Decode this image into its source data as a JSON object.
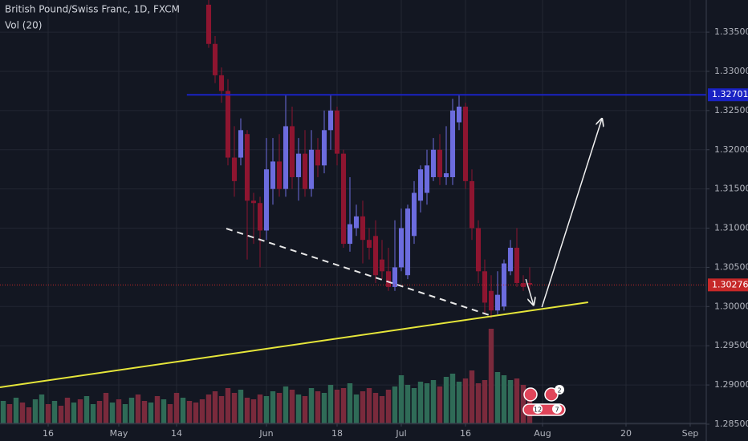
{
  "chart_data": {
    "type": "candlestick",
    "title": "British Pound/Swiss Franc, 1D, FXCM",
    "subtitle": "Vol (20)",
    "xlim": [
      -18.5,
      91.5
    ],
    "ylim": [
      1.2851,
      1.3391
    ],
    "grid": true,
    "yticks": [
      {
        "value": 1.285,
        "label": "1.28500"
      },
      {
        "value": 1.29,
        "label": "1.29000"
      },
      {
        "value": 1.295,
        "label": "1.29500"
      },
      {
        "value": 1.3,
        "label": "1.30000"
      },
      {
        "value": 1.305,
        "label": "1.30500"
      },
      {
        "value": 1.31,
        "label": "1.31000"
      },
      {
        "value": 1.315,
        "label": "1.31500"
      },
      {
        "value": 1.32,
        "label": "1.32000"
      },
      {
        "value": 1.325,
        "label": "1.32500"
      },
      {
        "value": 1.33,
        "label": "1.33000"
      },
      {
        "value": 1.335,
        "label": "1.33500"
      }
    ],
    "xticks": [
      {
        "value": -11,
        "label": "16"
      },
      {
        "value": 0,
        "label": "May"
      },
      {
        "value": 9,
        "label": "14"
      },
      {
        "value": 23,
        "label": "Jun"
      },
      {
        "value": 34,
        "label": "18"
      },
      {
        "value": 44,
        "label": "Jul"
      },
      {
        "value": 54,
        "label": "16"
      },
      {
        "value": 66,
        "label": "Aug"
      },
      {
        "value": 79,
        "label": "20"
      },
      {
        "value": 89,
        "label": "Sep"
      }
    ],
    "up_color": "#6c6cde",
    "down_color": "#8e1530",
    "x": [
      14,
      15,
      16,
      17,
      18,
      19,
      20,
      21,
      22,
      23,
      24,
      25,
      26,
      27,
      28,
      29,
      30,
      31,
      32,
      33,
      34,
      35,
      36,
      37,
      38,
      39,
      40,
      41,
      42,
      43,
      44,
      45,
      46,
      47,
      48,
      49,
      50,
      51,
      52,
      53,
      54,
      55,
      56,
      57,
      58,
      59,
      60,
      61,
      62,
      63,
      64
    ],
    "open": [
      1.3385,
      1.3335,
      1.3295,
      1.3275,
      1.319,
      1.319,
      1.322,
      1.3135,
      1.3132,
      1.3097,
      1.315,
      1.3185,
      1.315,
      1.323,
      1.3165,
      1.3195,
      1.315,
      1.32,
      1.318,
      1.3225,
      1.325,
      1.3195,
      1.308,
      1.31,
      1.3115,
      1.3085,
      1.309,
      1.306,
      1.3045,
      1.3025,
      1.305,
      1.304,
      1.309,
      1.3135,
      1.3145,
      1.3165,
      1.32,
      1.3165,
      1.3165,
      1.3235,
      1.3255,
      1.316,
      1.31,
      1.3045,
      1.302,
      1.2995,
      1.3,
      1.3045,
      1.3075,
      1.303,
      1.303
    ],
    "high": [
      1.3391,
      1.3345,
      1.3305,
      1.329,
      1.323,
      1.324,
      1.3225,
      1.3145,
      1.314,
      1.3215,
      1.3215,
      1.322,
      1.327,
      1.3255,
      1.3215,
      1.3225,
      1.3225,
      1.3215,
      1.325,
      1.327,
      1.3255,
      1.32,
      1.3165,
      1.313,
      1.3135,
      1.31,
      1.311,
      1.3085,
      1.3075,
      1.311,
      1.3125,
      1.313,
      1.316,
      1.318,
      1.32,
      1.3215,
      1.322,
      1.323,
      1.3265,
      1.327,
      1.326,
      1.3175,
      1.311,
      1.306,
      1.304,
      1.3045,
      1.306,
      1.3085,
      1.31,
      1.304,
      1.305
    ],
    "low": [
      1.333,
      1.3285,
      1.326,
      1.318,
      1.314,
      1.318,
      1.306,
      1.308,
      1.305,
      1.3085,
      1.313,
      1.314,
      1.314,
      1.315,
      1.3135,
      1.314,
      1.314,
      1.3165,
      1.317,
      1.32,
      1.318,
      1.3075,
      1.307,
      1.309,
      1.3055,
      1.306,
      1.303,
      1.3035,
      1.302,
      1.302,
      1.3045,
      1.3035,
      1.308,
      1.312,
      1.313,
      1.316,
      1.3155,
      1.3155,
      1.3155,
      1.3225,
      1.315,
      1.3085,
      1.303,
      1.299,
      1.2985,
      1.299,
      1.2995,
      1.304,
      1.3025,
      1.302,
      1.302
    ],
    "close": [
      1.3335,
      1.3295,
      1.3275,
      1.319,
      1.316,
      1.3225,
      1.3135,
      1.3132,
      1.3097,
      1.3175,
      1.3185,
      1.315,
      1.323,
      1.3165,
      1.3195,
      1.315,
      1.32,
      1.318,
      1.3225,
      1.325,
      1.3195,
      1.308,
      1.3105,
      1.3115,
      1.3085,
      1.3075,
      1.304,
      1.3045,
      1.3025,
      1.305,
      1.31,
      1.3125,
      1.3145,
      1.3175,
      1.318,
      1.32,
      1.3165,
      1.317,
      1.325,
      1.3255,
      1.316,
      1.31,
      1.3045,
      1.3005,
      1.2995,
      1.3015,
      1.3055,
      1.3075,
      1.303,
      1.3025,
      1.3028
    ],
    "volume": {
      "ylim": [
        0,
        100
      ],
      "up_color": "#2f6b57",
      "down_color": "#7a2a3c",
      "x": [
        -18,
        -17,
        -16,
        -15,
        -14,
        -13,
        -12,
        -11,
        -10,
        -9,
        -8,
        -7,
        -6,
        -5,
        -4,
        -3,
        -2,
        -1,
        0,
        1,
        2,
        3,
        4,
        5,
        6,
        7,
        8,
        9,
        10,
        11,
        12,
        13,
        14,
        15,
        16,
        17,
        18,
        19,
        20,
        21,
        22,
        23,
        24,
        25,
        26,
        27,
        28,
        29,
        30,
        31,
        32,
        33,
        34,
        35,
        36,
        37,
        38,
        39,
        40,
        41,
        42,
        43,
        44,
        45,
        46,
        47,
        48,
        49,
        50,
        51,
        52,
        53,
        54,
        55,
        56,
        57,
        58,
        59,
        60,
        61,
        62,
        63,
        64
      ],
      "values": [
        14,
        12,
        16,
        13,
        10,
        15,
        18,
        12,
        14,
        11,
        16,
        13,
        15,
        17,
        12,
        14,
        19,
        13,
        15,
        12,
        16,
        18,
        14,
        13,
        17,
        15,
        12,
        19,
        16,
        14,
        13,
        15,
        18,
        20,
        17,
        22,
        19,
        21,
        16,
        15,
        18,
        17,
        20,
        19,
        23,
        21,
        18,
        17,
        22,
        20,
        19,
        24,
        21,
        22,
        25,
        18,
        20,
        22,
        19,
        17,
        21,
        23,
        30,
        24,
        22,
        26,
        25,
        27,
        23,
        29,
        31,
        26,
        28,
        33,
        25,
        27,
        59,
        32,
        30,
        27,
        28,
        24,
        20
      ],
      "rising": [
        true,
        false,
        true,
        false,
        false,
        true,
        true,
        false,
        true,
        false,
        false,
        true,
        false,
        true,
        true,
        false,
        false,
        true,
        false,
        true,
        true,
        false,
        false,
        true,
        false,
        true,
        false,
        false,
        true,
        false,
        false,
        false,
        false,
        false,
        false,
        false,
        false,
        true,
        false,
        false,
        false,
        true,
        true,
        false,
        true,
        false,
        true,
        false,
        true,
        false,
        true,
        true,
        false,
        false,
        true,
        true,
        false,
        false,
        false,
        false,
        false,
        true,
        true,
        true,
        true,
        true,
        true,
        true,
        false,
        true,
        true,
        true,
        false,
        false,
        false,
        false,
        false,
        true,
        true,
        true,
        false,
        false,
        false
      ]
    },
    "drawings": [
      {
        "x": [
          10.6,
          91.5
        ],
        "y": [
          1.32701,
          1.32701
        ],
        "color": "#1a22c4",
        "width": 2,
        "dashed": false,
        "arrow": false
      },
      {
        "x": [
          -18.5,
          73.1
        ],
        "y": [
          1.2897,
          1.30054
        ],
        "color": "#e6e63a",
        "width": 2,
        "dashed": false,
        "arrow": false
      },
      {
        "x": [
          16.75,
          57.75
        ],
        "y": [
          1.30995,
          1.2989
        ],
        "color": "#e8e8e8",
        "width": 2,
        "dashed": true,
        "arrow": false
      },
      {
        "x": [
          63.4,
          64.6
        ],
        "y": [
          1.3035,
          1.3002
        ],
        "color": "#f0f0f0",
        "width": 1.5,
        "dashed": false,
        "arrow": true
      },
      {
        "x": [
          65.9,
          75.25
        ],
        "y": [
          1.29993,
          1.32396
        ],
        "color": "#f0f0f0",
        "width": 1.5,
        "dashed": false,
        "arrow": true
      }
    ],
    "price_markers": [
      {
        "value": 1.32701,
        "label": "1.32701",
        "color": "#1a22c4",
        "line": false
      },
      {
        "value": 1.30276,
        "label": "1.30276",
        "color": "#c62828",
        "line": true
      }
    ],
    "event_badges": [
      "2",
      "12",
      "7"
    ]
  }
}
